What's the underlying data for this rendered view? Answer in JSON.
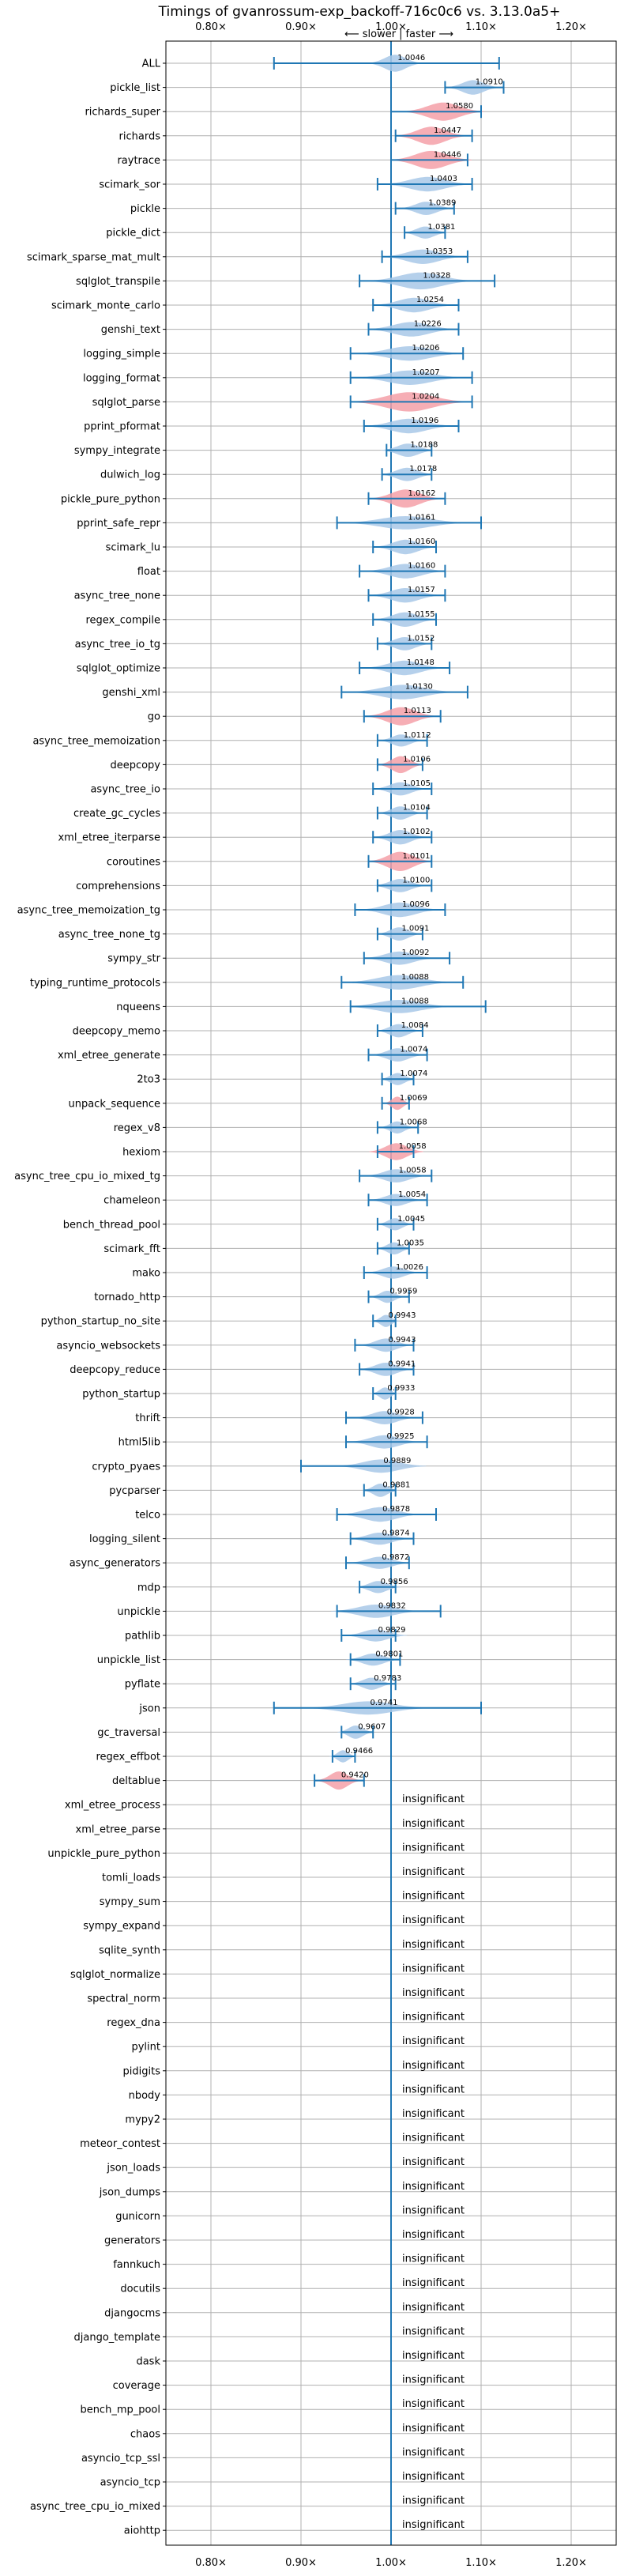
{
  "chart_data": {
    "type": "violin",
    "title": "Timings of gvanrossum-exp_backoff-716c0c6 vs. 3.13.0a5+",
    "direction": {
      "left": "⟵ slower",
      "separator": "|",
      "right": "faster ⟶"
    },
    "xlim": [
      0.75,
      1.25
    ],
    "reference_x": 1.0,
    "xticks": [
      0.8,
      0.9,
      1.0,
      1.1,
      1.2
    ],
    "xtick_labels": [
      "0.80×",
      "0.90×",
      "1.00×",
      "1.10×",
      "1.20×"
    ],
    "grid": true,
    "colors": {
      "faster": "#a8c8e8",
      "slower": "#f4a0a8",
      "errorbar": "#1f77b4",
      "reference": "#1f77b4",
      "grid": "#b0b0b0"
    },
    "insignificant_label": "insignificant",
    "benchmarks": [
      {
        "name": "ALL",
        "value": 1.0046,
        "label": "1.0046",
        "lo": 0.87,
        "hi": 1.12,
        "spread": 0.03,
        "width": 0.7,
        "slower": false
      },
      {
        "name": "pickle_list",
        "value": 1.091,
        "label": "1.0910",
        "lo": 1.06,
        "hi": 1.125,
        "spread": 0.03,
        "width": 0.6,
        "slower": false
      },
      {
        "name": "richards_super",
        "value": 1.058,
        "label": "1.0580",
        "lo": 1.0,
        "hi": 1.1,
        "spread": 0.045,
        "width": 0.75,
        "slower": true
      },
      {
        "name": "richards",
        "value": 1.0447,
        "label": "1.0447",
        "lo": 1.005,
        "hi": 1.09,
        "spread": 0.04,
        "width": 0.75,
        "slower": true
      },
      {
        "name": "raytrace",
        "value": 1.0446,
        "label": "1.0446",
        "lo": 1.0,
        "hi": 1.085,
        "spread": 0.045,
        "width": 0.75,
        "slower": true
      },
      {
        "name": "scimark_sor",
        "value": 1.0403,
        "label": "1.0403",
        "lo": 0.985,
        "hi": 1.09,
        "spread": 0.05,
        "width": 0.6,
        "slower": false
      },
      {
        "name": "pickle",
        "value": 1.0389,
        "label": "1.0389",
        "lo": 1.005,
        "hi": 1.07,
        "spread": 0.03,
        "width": 0.55,
        "slower": false
      },
      {
        "name": "pickle_dict",
        "value": 1.0381,
        "label": "1.0381",
        "lo": 1.015,
        "hi": 1.06,
        "spread": 0.025,
        "width": 0.5,
        "slower": false
      },
      {
        "name": "scimark_sparse_mat_mult",
        "value": 1.0353,
        "label": "1.0353",
        "lo": 0.99,
        "hi": 1.085,
        "spread": 0.045,
        "width": 0.6,
        "slower": false
      },
      {
        "name": "sqlglot_transpile",
        "value": 1.0328,
        "label": "1.0328",
        "lo": 0.965,
        "hi": 1.115,
        "spread": 0.06,
        "width": 0.7,
        "slower": false
      },
      {
        "name": "scimark_monte_carlo",
        "value": 1.0254,
        "label": "1.0254",
        "lo": 0.98,
        "hi": 1.075,
        "spread": 0.045,
        "width": 0.6,
        "slower": false
      },
      {
        "name": "genshi_text",
        "value": 1.0226,
        "label": "1.0226",
        "lo": 0.975,
        "hi": 1.075,
        "spread": 0.05,
        "width": 0.6,
        "slower": false
      },
      {
        "name": "logging_simple",
        "value": 1.0206,
        "label": "1.0206",
        "lo": 0.955,
        "hi": 1.08,
        "spread": 0.06,
        "width": 0.6,
        "slower": false
      },
      {
        "name": "logging_format",
        "value": 1.0207,
        "label": "1.0207",
        "lo": 0.955,
        "hi": 1.09,
        "spread": 0.06,
        "width": 0.6,
        "slower": false
      },
      {
        "name": "sqlglot_parse",
        "value": 1.0204,
        "label": "1.0204",
        "lo": 0.955,
        "hi": 1.09,
        "spread": 0.065,
        "width": 0.8,
        "slower": true
      },
      {
        "name": "pprint_pformat",
        "value": 1.0196,
        "label": "1.0196",
        "lo": 0.97,
        "hi": 1.075,
        "spread": 0.05,
        "width": 0.6,
        "slower": false
      },
      {
        "name": "sympy_integrate",
        "value": 1.0188,
        "label": "1.0188",
        "lo": 0.995,
        "hi": 1.045,
        "spread": 0.03,
        "width": 0.55,
        "slower": false
      },
      {
        "name": "dulwich_log",
        "value": 1.0178,
        "label": "1.0178",
        "lo": 0.99,
        "hi": 1.045,
        "spread": 0.03,
        "width": 0.55,
        "slower": false
      },
      {
        "name": "pickle_pure_python",
        "value": 1.0162,
        "label": "1.0162",
        "lo": 0.975,
        "hi": 1.06,
        "spread": 0.04,
        "width": 0.75,
        "slower": true
      },
      {
        "name": "pprint_safe_repr",
        "value": 1.0161,
        "label": "1.0161",
        "lo": 0.94,
        "hi": 1.1,
        "spread": 0.07,
        "width": 0.55,
        "slower": false
      },
      {
        "name": "scimark_lu",
        "value": 1.016,
        "label": "1.0160",
        "lo": 0.98,
        "hi": 1.05,
        "spread": 0.035,
        "width": 0.6,
        "slower": false
      },
      {
        "name": "float",
        "value": 1.016,
        "label": "1.0160",
        "lo": 0.965,
        "hi": 1.06,
        "spread": 0.045,
        "width": 0.6,
        "slower": false
      },
      {
        "name": "async_tree_none",
        "value": 1.0157,
        "label": "1.0157",
        "lo": 0.975,
        "hi": 1.06,
        "spread": 0.04,
        "width": 0.6,
        "slower": false
      },
      {
        "name": "regex_compile",
        "value": 1.0155,
        "label": "1.0155",
        "lo": 0.98,
        "hi": 1.05,
        "spread": 0.035,
        "width": 0.6,
        "slower": false
      },
      {
        "name": "async_tree_io_tg",
        "value": 1.0152,
        "label": "1.0152",
        "lo": 0.985,
        "hi": 1.045,
        "spread": 0.03,
        "width": 0.55,
        "slower": false
      },
      {
        "name": "sqlglot_optimize",
        "value": 1.0148,
        "label": "1.0148",
        "lo": 0.965,
        "hi": 1.065,
        "spread": 0.045,
        "width": 0.6,
        "slower": false
      },
      {
        "name": "genshi_xml",
        "value": 1.013,
        "label": "1.0130",
        "lo": 0.945,
        "hi": 1.085,
        "spread": 0.06,
        "width": 0.6,
        "slower": false
      },
      {
        "name": "go",
        "value": 1.0113,
        "label": "1.0113",
        "lo": 0.97,
        "hi": 1.055,
        "spread": 0.04,
        "width": 0.75,
        "slower": true
      },
      {
        "name": "async_tree_memoization",
        "value": 1.0112,
        "label": "1.0112",
        "lo": 0.985,
        "hi": 1.04,
        "spread": 0.025,
        "width": 0.5,
        "slower": false
      },
      {
        "name": "deepcopy",
        "value": 1.0106,
        "label": "1.0106",
        "lo": 0.985,
        "hi": 1.035,
        "spread": 0.025,
        "width": 0.7,
        "slower": true
      },
      {
        "name": "async_tree_io",
        "value": 1.0105,
        "label": "1.0105",
        "lo": 0.98,
        "hi": 1.045,
        "spread": 0.03,
        "width": 0.55,
        "slower": false
      },
      {
        "name": "create_gc_cycles",
        "value": 1.0104,
        "label": "1.0104",
        "lo": 0.985,
        "hi": 1.04,
        "spread": 0.025,
        "width": 0.55,
        "slower": false
      },
      {
        "name": "xml_etree_iterparse",
        "value": 1.0102,
        "label": "1.0102",
        "lo": 0.98,
        "hi": 1.045,
        "spread": 0.03,
        "width": 0.6,
        "slower": false
      },
      {
        "name": "coroutines",
        "value": 1.0101,
        "label": "1.0101",
        "lo": 0.975,
        "hi": 1.045,
        "spread": 0.035,
        "width": 0.8,
        "slower": true
      },
      {
        "name": "comprehensions",
        "value": 1.01,
        "label": "1.0100",
        "lo": 0.985,
        "hi": 1.045,
        "spread": 0.03,
        "width": 0.55,
        "slower": false
      },
      {
        "name": "async_tree_memoization_tg",
        "value": 1.0096,
        "label": "1.0096",
        "lo": 0.96,
        "hi": 1.06,
        "spread": 0.045,
        "width": 0.6,
        "slower": false
      },
      {
        "name": "async_tree_none_tg",
        "value": 1.0091,
        "label": "1.0091",
        "lo": 0.985,
        "hi": 1.035,
        "spread": 0.025,
        "width": 0.55,
        "slower": false
      },
      {
        "name": "sympy_str",
        "value": 1.0092,
        "label": "1.0092",
        "lo": 0.97,
        "hi": 1.065,
        "spread": 0.04,
        "width": 0.55,
        "slower": false
      },
      {
        "name": "typing_runtime_protocols",
        "value": 1.0088,
        "label": "1.0088",
        "lo": 0.945,
        "hi": 1.08,
        "spread": 0.06,
        "width": 0.6,
        "slower": false
      },
      {
        "name": "nqueens",
        "value": 1.0088,
        "label": "1.0088",
        "lo": 0.955,
        "hi": 1.105,
        "spread": 0.06,
        "width": 0.55,
        "slower": false
      },
      {
        "name": "deepcopy_memo",
        "value": 1.0084,
        "label": "1.0084",
        "lo": 0.985,
        "hi": 1.035,
        "spread": 0.025,
        "width": 0.55,
        "slower": false
      },
      {
        "name": "xml_etree_generate",
        "value": 1.0074,
        "label": "1.0074",
        "lo": 0.975,
        "hi": 1.04,
        "spread": 0.03,
        "width": 0.55,
        "slower": false
      },
      {
        "name": "2to3",
        "value": 1.0074,
        "label": "1.0074",
        "lo": 0.99,
        "hi": 1.025,
        "spread": 0.02,
        "width": 0.5,
        "slower": false
      },
      {
        "name": "unpack_sequence",
        "value": 1.0069,
        "label": "1.0069",
        "lo": 0.99,
        "hi": 1.02,
        "spread": 0.015,
        "width": 0.55,
        "slower": true
      },
      {
        "name": "regex_v8",
        "value": 1.0068,
        "label": "1.0068",
        "lo": 0.985,
        "hi": 1.03,
        "spread": 0.02,
        "width": 0.5,
        "slower": false
      },
      {
        "name": "hexiom",
        "value": 1.0058,
        "label": "1.0058",
        "lo": 0.985,
        "hi": 1.025,
        "spread": 0.03,
        "width": 0.7,
        "slower": true
      },
      {
        "name": "async_tree_cpu_io_mixed_tg",
        "value": 1.0058,
        "label": "1.0058",
        "lo": 0.965,
        "hi": 1.045,
        "spread": 0.035,
        "width": 0.55,
        "slower": false
      },
      {
        "name": "chameleon",
        "value": 1.0054,
        "label": "1.0054",
        "lo": 0.975,
        "hi": 1.04,
        "spread": 0.03,
        "width": 0.5,
        "slower": false
      },
      {
        "name": "bench_thread_pool",
        "value": 1.0045,
        "label": "1.0045",
        "lo": 0.985,
        "hi": 1.025,
        "spread": 0.02,
        "width": 0.5,
        "slower": false
      },
      {
        "name": "scimark_fft",
        "value": 1.0035,
        "label": "1.0035",
        "lo": 0.985,
        "hi": 1.02,
        "spread": 0.02,
        "width": 0.5,
        "slower": false
      },
      {
        "name": "mako",
        "value": 1.0026,
        "label": "1.0026",
        "lo": 0.97,
        "hi": 1.04,
        "spread": 0.03,
        "width": 0.5,
        "slower": false
      },
      {
        "name": "tornado_http",
        "value": 0.9959,
        "label": "0.9959",
        "lo": 0.975,
        "hi": 1.02,
        "spread": 0.02,
        "width": 0.5,
        "slower": false
      },
      {
        "name": "python_startup_no_site",
        "value": 0.9943,
        "label": "0.9943",
        "lo": 0.98,
        "hi": 1.005,
        "spread": 0.015,
        "width": 0.5,
        "slower": false
      },
      {
        "name": "asyncio_websockets",
        "value": 0.9943,
        "label": "0.9943",
        "lo": 0.96,
        "hi": 1.025,
        "spread": 0.03,
        "width": 0.55,
        "slower": false
      },
      {
        "name": "deepcopy_reduce",
        "value": 0.9941,
        "label": "0.9941",
        "lo": 0.965,
        "hi": 1.025,
        "spread": 0.03,
        "width": 0.55,
        "slower": false
      },
      {
        "name": "python_startup",
        "value": 0.9933,
        "label": "0.9933",
        "lo": 0.98,
        "hi": 1.005,
        "spread": 0.015,
        "width": 0.5,
        "slower": false
      },
      {
        "name": "thrift",
        "value": 0.9928,
        "label": "0.9928",
        "lo": 0.95,
        "hi": 1.035,
        "spread": 0.035,
        "width": 0.55,
        "slower": false
      },
      {
        "name": "html5lib",
        "value": 0.9925,
        "label": "0.9925",
        "lo": 0.95,
        "hi": 1.04,
        "spread": 0.04,
        "width": 0.55,
        "slower": false
      },
      {
        "name": "crypto_pyaes",
        "value": 0.9889,
        "label": "0.9889",
        "lo": 0.9,
        "hi": 1.0,
        "spread": 0.05,
        "width": 0.55,
        "slower": false
      },
      {
        "name": "pycparser",
        "value": 0.9881,
        "label": "0.9881",
        "lo": 0.97,
        "hi": 1.005,
        "spread": 0.02,
        "width": 0.55,
        "slower": false
      },
      {
        "name": "telco",
        "value": 0.9878,
        "label": "0.9878",
        "lo": 0.94,
        "hi": 1.05,
        "spread": 0.045,
        "width": 0.6,
        "slower": false
      },
      {
        "name": "logging_silent",
        "value": 0.9874,
        "label": "0.9874",
        "lo": 0.955,
        "hi": 1.025,
        "spread": 0.035,
        "width": 0.5,
        "slower": false
      },
      {
        "name": "async_generators",
        "value": 0.9872,
        "label": "0.9872",
        "lo": 0.95,
        "hi": 1.02,
        "spread": 0.035,
        "width": 0.5,
        "slower": false
      },
      {
        "name": "mdp",
        "value": 0.9856,
        "label": "0.9856",
        "lo": 0.965,
        "hi": 1.005,
        "spread": 0.025,
        "width": 0.5,
        "slower": false
      },
      {
        "name": "unpickle",
        "value": 0.9832,
        "label": "0.9832",
        "lo": 0.94,
        "hi": 1.055,
        "spread": 0.05,
        "width": 0.55,
        "slower": false
      },
      {
        "name": "pathlib",
        "value": 0.9829,
        "label": "0.9829",
        "lo": 0.945,
        "hi": 1.005,
        "spread": 0.035,
        "width": 0.5,
        "slower": false
      },
      {
        "name": "unpickle_list",
        "value": 0.9801,
        "label": "0.9801",
        "lo": 0.955,
        "hi": 1.01,
        "spread": 0.03,
        "width": 0.5,
        "slower": false
      },
      {
        "name": "pyflate",
        "value": 0.9783,
        "label": "0.9783",
        "lo": 0.955,
        "hi": 1.005,
        "spread": 0.025,
        "width": 0.5,
        "slower": false
      },
      {
        "name": "json",
        "value": 0.9741,
        "label": "0.9741",
        "lo": 0.87,
        "hi": 1.1,
        "spread": 0.07,
        "width": 0.55,
        "slower": false
      },
      {
        "name": "gc_traversal",
        "value": 0.9607,
        "label": "0.9607",
        "lo": 0.945,
        "hi": 0.98,
        "spread": 0.02,
        "width": 0.55,
        "slower": false
      },
      {
        "name": "regex_effbot",
        "value": 0.9466,
        "label": "0.9466",
        "lo": 0.935,
        "hi": 0.96,
        "spread": 0.015,
        "width": 0.5,
        "slower": false
      },
      {
        "name": "deltablue",
        "value": 0.942,
        "label": "0.9420",
        "lo": 0.915,
        "hi": 0.97,
        "spread": 0.025,
        "width": 0.75,
        "slower": true
      },
      {
        "name": "xml_etree_process",
        "insignificant": true
      },
      {
        "name": "xml_etree_parse",
        "insignificant": true
      },
      {
        "name": "unpickle_pure_python",
        "insignificant": true
      },
      {
        "name": "tomli_loads",
        "insignificant": true
      },
      {
        "name": "sympy_sum",
        "insignificant": true
      },
      {
        "name": "sympy_expand",
        "insignificant": true
      },
      {
        "name": "sqlite_synth",
        "insignificant": true
      },
      {
        "name": "sqlglot_normalize",
        "insignificant": true
      },
      {
        "name": "spectral_norm",
        "insignificant": true
      },
      {
        "name": "regex_dna",
        "insignificant": true
      },
      {
        "name": "pylint",
        "insignificant": true
      },
      {
        "name": "pidigits",
        "insignificant": true
      },
      {
        "name": "nbody",
        "insignificant": true
      },
      {
        "name": "mypy2",
        "insignificant": true
      },
      {
        "name": "meteor_contest",
        "insignificant": true
      },
      {
        "name": "json_loads",
        "insignificant": true
      },
      {
        "name": "json_dumps",
        "insignificant": true
      },
      {
        "name": "gunicorn",
        "insignificant": true
      },
      {
        "name": "generators",
        "insignificant": true
      },
      {
        "name": "fannkuch",
        "insignificant": true
      },
      {
        "name": "docutils",
        "insignificant": true
      },
      {
        "name": "djangocms",
        "insignificant": true
      },
      {
        "name": "django_template",
        "insignificant": true
      },
      {
        "name": "dask",
        "insignificant": true
      },
      {
        "name": "coverage",
        "insignificant": true
      },
      {
        "name": "bench_mp_pool",
        "insignificant": true
      },
      {
        "name": "chaos",
        "insignificant": true
      },
      {
        "name": "asyncio_tcp_ssl",
        "insignificant": true
      },
      {
        "name": "asyncio_tcp",
        "insignificant": true
      },
      {
        "name": "async_tree_cpu_io_mixed",
        "insignificant": true
      },
      {
        "name": "aiohttp",
        "insignificant": true
      }
    ]
  }
}
